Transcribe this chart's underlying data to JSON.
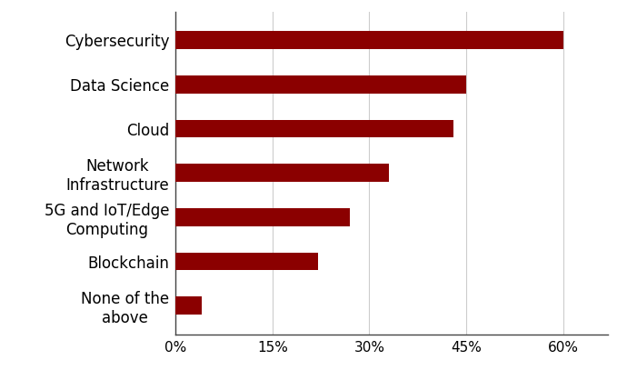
{
  "categories": [
    "None of the\nabove",
    "Blockchain",
    "5G and IoT/Edge\nComputing",
    "Network\nInfrastructure",
    "Cloud",
    "Data Science",
    "Cybersecurity"
  ],
  "values": [
    4,
    22,
    27,
    33,
    43,
    45,
    60
  ],
  "bar_color": "#8B0000",
  "background_color": "#ffffff",
  "xlim": [
    0,
    67
  ],
  "xticks": [
    0,
    15,
    30,
    45,
    60
  ],
  "xticklabels": [
    "0%",
    "15%",
    "30%",
    "45%",
    "60%"
  ],
  "bar_height": 0.4,
  "grid_color": "#cccccc",
  "label_fontsize": 12,
  "tick_fontsize": 11,
  "figsize": [
    6.9,
    4.18
  ],
  "dpi": 100
}
